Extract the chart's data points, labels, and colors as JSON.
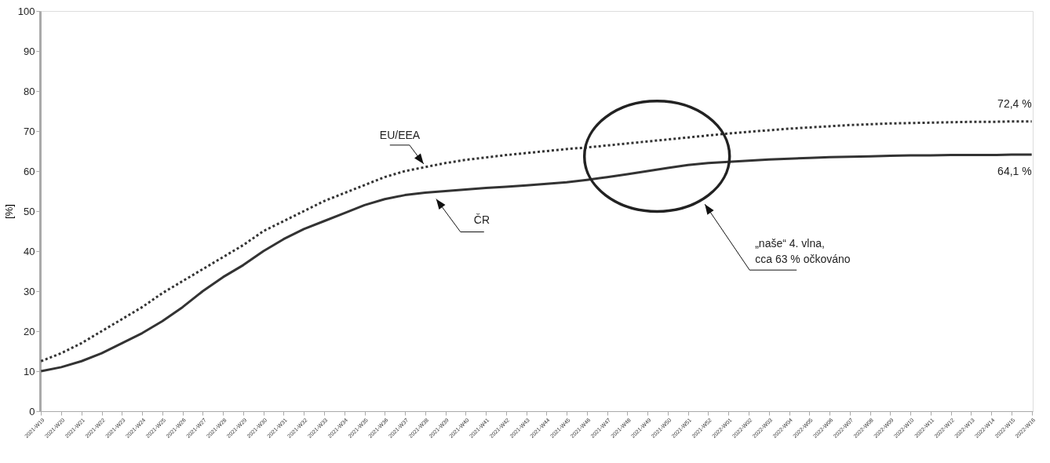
{
  "chart_data": {
    "type": "line",
    "ylabel": "[%]",
    "categories": [
      "2021-W19",
      "2021-W20",
      "2021-W21",
      "2021-W22",
      "2021-W23",
      "2021-W24",
      "2021-W25",
      "2021-W26",
      "2021-W27",
      "2021-W28",
      "2021-W29",
      "2021-W30",
      "2021-W31",
      "2021-W32",
      "2021-W33",
      "2021-W34",
      "2021-W35",
      "2021-W36",
      "2021-W37",
      "2021-W38",
      "2021-W39",
      "2021-W40",
      "2021-W41",
      "2021-W42",
      "2021-W43",
      "2021-W44",
      "2021-W45",
      "2021-W46",
      "2021-W47",
      "2021-W48",
      "2021-W49",
      "2021-W50",
      "2021-W51",
      "2021-W52",
      "2022-W01",
      "2022-W02",
      "2022-W03",
      "2022-W04",
      "2022-W05",
      "2022-W06",
      "2022-W07",
      "2022-W08",
      "2022-W09",
      "2022-W10",
      "2022-W11",
      "2022-W12",
      "2022-W13",
      "2022-W14",
      "2022-W15",
      "2022-W16"
    ],
    "series": [
      {
        "name": "EU/EEA",
        "color": "#333333",
        "line_style": "dotted",
        "values": [
          12.5,
          14.5,
          17,
          20,
          23,
          26,
          29.5,
          32.5,
          35.5,
          38.5,
          41.5,
          45,
          47.5,
          50,
          52.5,
          54.5,
          56.5,
          58.5,
          60,
          61,
          62,
          62.8,
          63.4,
          64,
          64.5,
          65,
          65.5,
          65.9,
          66.4,
          66.9,
          67.4,
          67.9,
          68.4,
          68.9,
          69.4,
          69.8,
          70.2,
          70.6,
          70.9,
          71.2,
          71.5,
          71.7,
          71.9,
          72,
          72.1,
          72.2,
          72.3,
          72.3,
          72.4,
          72.4
        ]
      },
      {
        "name": "ČR",
        "color": "#333333",
        "line_style": "solid",
        "values": [
          10,
          11,
          12.5,
          14.5,
          17,
          19.5,
          22.5,
          26,
          30,
          33.5,
          36.5,
          40,
          43,
          45.5,
          47.5,
          49.5,
          51.5,
          53,
          54,
          54.6,
          55,
          55.4,
          55.8,
          56.1,
          56.4,
          56.8,
          57.2,
          57.8,
          58.5,
          59.2,
          60,
          60.8,
          61.5,
          62,
          62.3,
          62.6,
          62.9,
          63.1,
          63.3,
          63.5,
          63.6,
          63.7,
          63.8,
          63.9,
          63.9,
          64,
          64,
          64,
          64.1,
          64.1
        ]
      }
    ],
    "ylim": [
      0,
      100
    ],
    "yticks": [
      0,
      10,
      20,
      30,
      40,
      50,
      60,
      70,
      80,
      90,
      100
    ],
    "grid": false,
    "legend": false,
    "marker": "none",
    "annotations": [
      {
        "text": "72,4 %",
        "x": "2022-W16",
        "y": 72.4
      },
      {
        "text": "64,1 %",
        "x": "2022-W16",
        "y": 64.1
      },
      "„naše“ 4. vlna,\ncca 63 % očkováno"
    ]
  }
}
